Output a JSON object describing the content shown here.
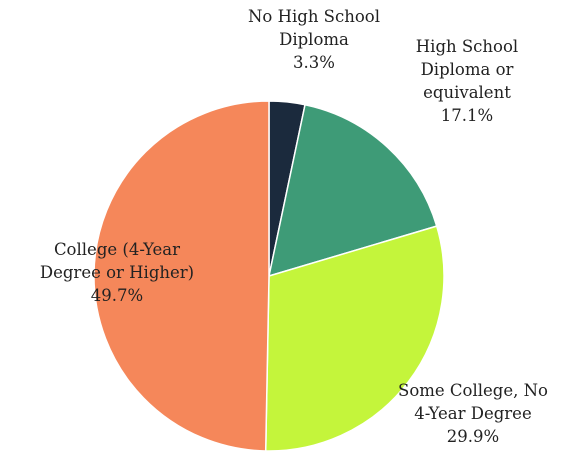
{
  "chart_data": {
    "type": "pie",
    "start_angle_deg": 0,
    "direction": "clockwise",
    "legend": "none",
    "slices": [
      {
        "label_lines": [
          "No High School",
          "Diploma"
        ],
        "value_text": "3.3%",
        "value": 3.3,
        "color": "#1b2a3d"
      },
      {
        "label_lines": [
          "High School",
          "Diploma or",
          "equivalent"
        ],
        "value_text": "17.1%",
        "value": 17.1,
        "color": "#3e9b77"
      },
      {
        "label_lines": [
          "Some College, No",
          "4-Year Degree"
        ],
        "value_text": "29.9%",
        "value": 29.9,
        "color": "#c4f53b"
      },
      {
        "label_lines": [
          "College (4-Year",
          "Degree or Higher)"
        ],
        "value_text": "49.7%",
        "value": 49.7,
        "color": "#f5875a"
      }
    ]
  }
}
